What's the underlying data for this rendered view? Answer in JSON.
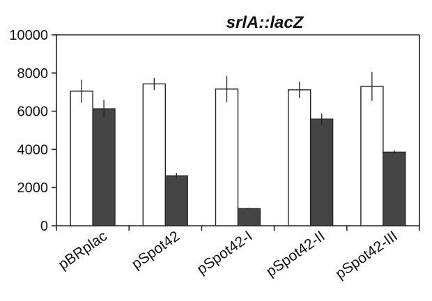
{
  "chart_data": {
    "type": "bar",
    "title": "srlA::lacZ",
    "categories": [
      "pBRplac",
      "pSpot42",
      "pSpot42-I",
      "pSpot42-II",
      "pSpot42-III"
    ],
    "series": [
      {
        "values": [
          7050,
          7430,
          7160,
          7120,
          7300
        ],
        "errors": [
          600,
          320,
          680,
          420,
          760
        ],
        "color": "#ffffff"
      },
      {
        "values": [
          6130,
          2620,
          900,
          5590,
          3860
        ],
        "errors": [
          470,
          150,
          40,
          280,
          100
        ],
        "color": "#444444"
      }
    ],
    "ylim": [
      0,
      10000
    ],
    "yticks": [
      0,
      2000,
      4000,
      6000,
      8000,
      10000
    ],
    "grid": false,
    "legend": "none",
    "xlabel": "",
    "ylabel": ""
  }
}
